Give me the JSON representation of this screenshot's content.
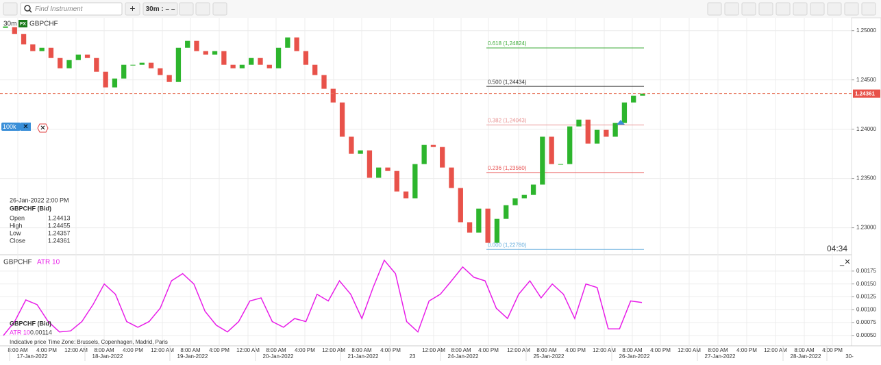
{
  "toolbar": {
    "search_placeholder": "Find Instrument",
    "timeframe": "30m : – –"
  },
  "chart": {
    "type": "candlestick",
    "timeframe": "30m",
    "badge": "FX",
    "instrument": "GBPCHF",
    "closes": [
      1.25035,
      1.24965,
      1.24861,
      1.24792,
      1.24826,
      1.24722,
      1.24618,
      1.24701,
      1.24757,
      1.24722,
      1.24583,
      1.24424,
      1.24514,
      1.24653,
      1.24653,
      1.24674,
      1.24618,
      1.24549,
      1.24479,
      1.24826,
      1.24896,
      1.24792,
      1.24757,
      1.24792,
      1.24653,
      1.24618,
      1.24653,
      1.24722,
      1.24653,
      1.24618,
      1.24826,
      1.24931,
      1.24792,
      1.24653,
      1.24549,
      1.2441,
      1.24271,
      1.23924,
      1.2375,
      1.23785,
      1.23507,
      1.23611,
      1.23576,
      1.23368,
      1.23299,
      1.23646,
      1.2384,
      1.23819,
      1.23611,
      1.23403,
      1.23056,
      1.22951,
      1.23194,
      1.22847,
      1.2309,
      1.23229,
      1.23299,
      1.23333,
      1.23438,
      1.23924,
      1.23646,
      1.23646,
      1.24028,
      1.24097,
      1.23854,
      1.23993,
      1.23924,
      1.24063,
      1.24271,
      1.2434,
      1.24361
    ],
    "up_color": "#2db52d",
    "down_color": "#e8524a",
    "ylim": [
      1.2274,
      1.2513
    ],
    "yticks": [
      {
        "value": 1.23,
        "label": "1.23000"
      },
      {
        "value": 1.235,
        "label": "1.23500"
      },
      {
        "value": 1.24,
        "label": "1.24000"
      },
      {
        "value": 1.245,
        "label": "1.24500"
      },
      {
        "value": 1.25,
        "label": "1.25000"
      }
    ],
    "last_price": {
      "value": 1.24361,
      "label": "1.24361"
    },
    "fib_levels": [
      {
        "value": 1.24824,
        "label": "0.618 (1,24824)",
        "color": "#3aaa35"
      },
      {
        "value": 1.24434,
        "label": "0.500 (1,24434)",
        "color": "#333333"
      },
      {
        "value": 1.24043,
        "label": "0.382 (1,24043)",
        "color": "#e89090"
      },
      {
        "value": 1.2356,
        "label": "0.236 (1,23560)",
        "color": "#e85555"
      },
      {
        "value": 1.2278,
        "label": "0.000 (1,22780)",
        "color": "#6ab0de"
      }
    ],
    "order_label": "100k",
    "countdown": "04:34",
    "info": {
      "date": "26-Jan-2022 2:00 PM",
      "title": "GBPCHF (Bid)",
      "rows": [
        [
          "Open",
          "1.24413"
        ],
        [
          "High",
          "1.24455"
        ],
        [
          "Low",
          "1.24357"
        ],
        [
          "Close",
          "1.24361"
        ]
      ]
    }
  },
  "indicator": {
    "type": "line",
    "instrument": "GBPCHF",
    "name": "ATR 10",
    "color": "#e81ee8",
    "values": [
      0.0005,
      0.00077,
      0.00119,
      0.0011,
      0.00077,
      0.00057,
      0.00059,
      0.00077,
      0.0011,
      0.0015,
      0.0013,
      0.00077,
      0.00066,
      0.00077,
      0.00103,
      0.00156,
      0.0017,
      0.0015,
      0.00097,
      0.0007,
      0.00057,
      0.00077,
      0.00117,
      0.00123,
      0.00077,
      0.00066,
      0.00083,
      0.00077,
      0.0013,
      0.00117,
      0.00156,
      0.0013,
      0.00083,
      0.00143,
      0.00196,
      0.0017,
      0.00077,
      0.00057,
      0.00117,
      0.0013,
      0.00156,
      0.00183,
      0.00163,
      0.00156,
      0.00103,
      0.00083,
      0.0013,
      0.00156,
      0.00123,
      0.0015,
      0.0013,
      0.00083,
      0.0015,
      0.00143,
      0.00063,
      0.00063,
      0.00117,
      0.00114
    ],
    "ylim": [
      0.0003,
      0.00204
    ],
    "yticks": [
      {
        "value": 0.0005,
        "label": "0.00050"
      },
      {
        "value": 0.00075,
        "label": "0.00075"
      },
      {
        "value": 0.001,
        "label": "0.00100"
      },
      {
        "value": 0.00125,
        "label": "0.00125"
      },
      {
        "value": 0.0015,
        "label": "0.00150"
      },
      {
        "value": 0.00175,
        "label": "0.00175"
      }
    ],
    "legend_title": "GBPCHF (Bid)",
    "legend_value": "0.00114",
    "footer": [
      "Indicative price",
      "Time Zone: Brussels, Copenhagen, Madrid, Paris"
    ]
  },
  "time_axis": {
    "times": [
      "8:00 AM",
      "4:00 PM",
      "12:00 AM",
      "8:00 AM",
      "4:00 PM",
      "12:00 AM",
      "8:00 AM",
      "4:00 PM",
      "12:00 AM",
      "8:00 AM",
      "4:00 PM",
      "12:00 AM",
      "8:00 AM",
      "4:00 PM",
      "12:00 AM",
      "8:00 AM",
      "4:00 PM",
      "12:00 AM",
      "8:00 AM",
      "4:00 PM",
      "12:00 AM",
      "8:00 AM",
      "4:00 PM",
      "12:00 AM",
      "8:00 AM",
      "4:00 PM",
      "12:00 AM",
      "8:00 AM",
      "4:00 PM"
    ],
    "dates": [
      "17-Jan-2022",
      "18-Jan-2022",
      "19-Jan-2022",
      "20-Jan-2022",
      "21-Jan-2022",
      "23",
      "24-Jan-2022",
      "25-Jan-2022",
      "26-Jan-2022",
      "27-Jan-2022",
      "28-Jan-2022",
      "30-"
    ]
  }
}
